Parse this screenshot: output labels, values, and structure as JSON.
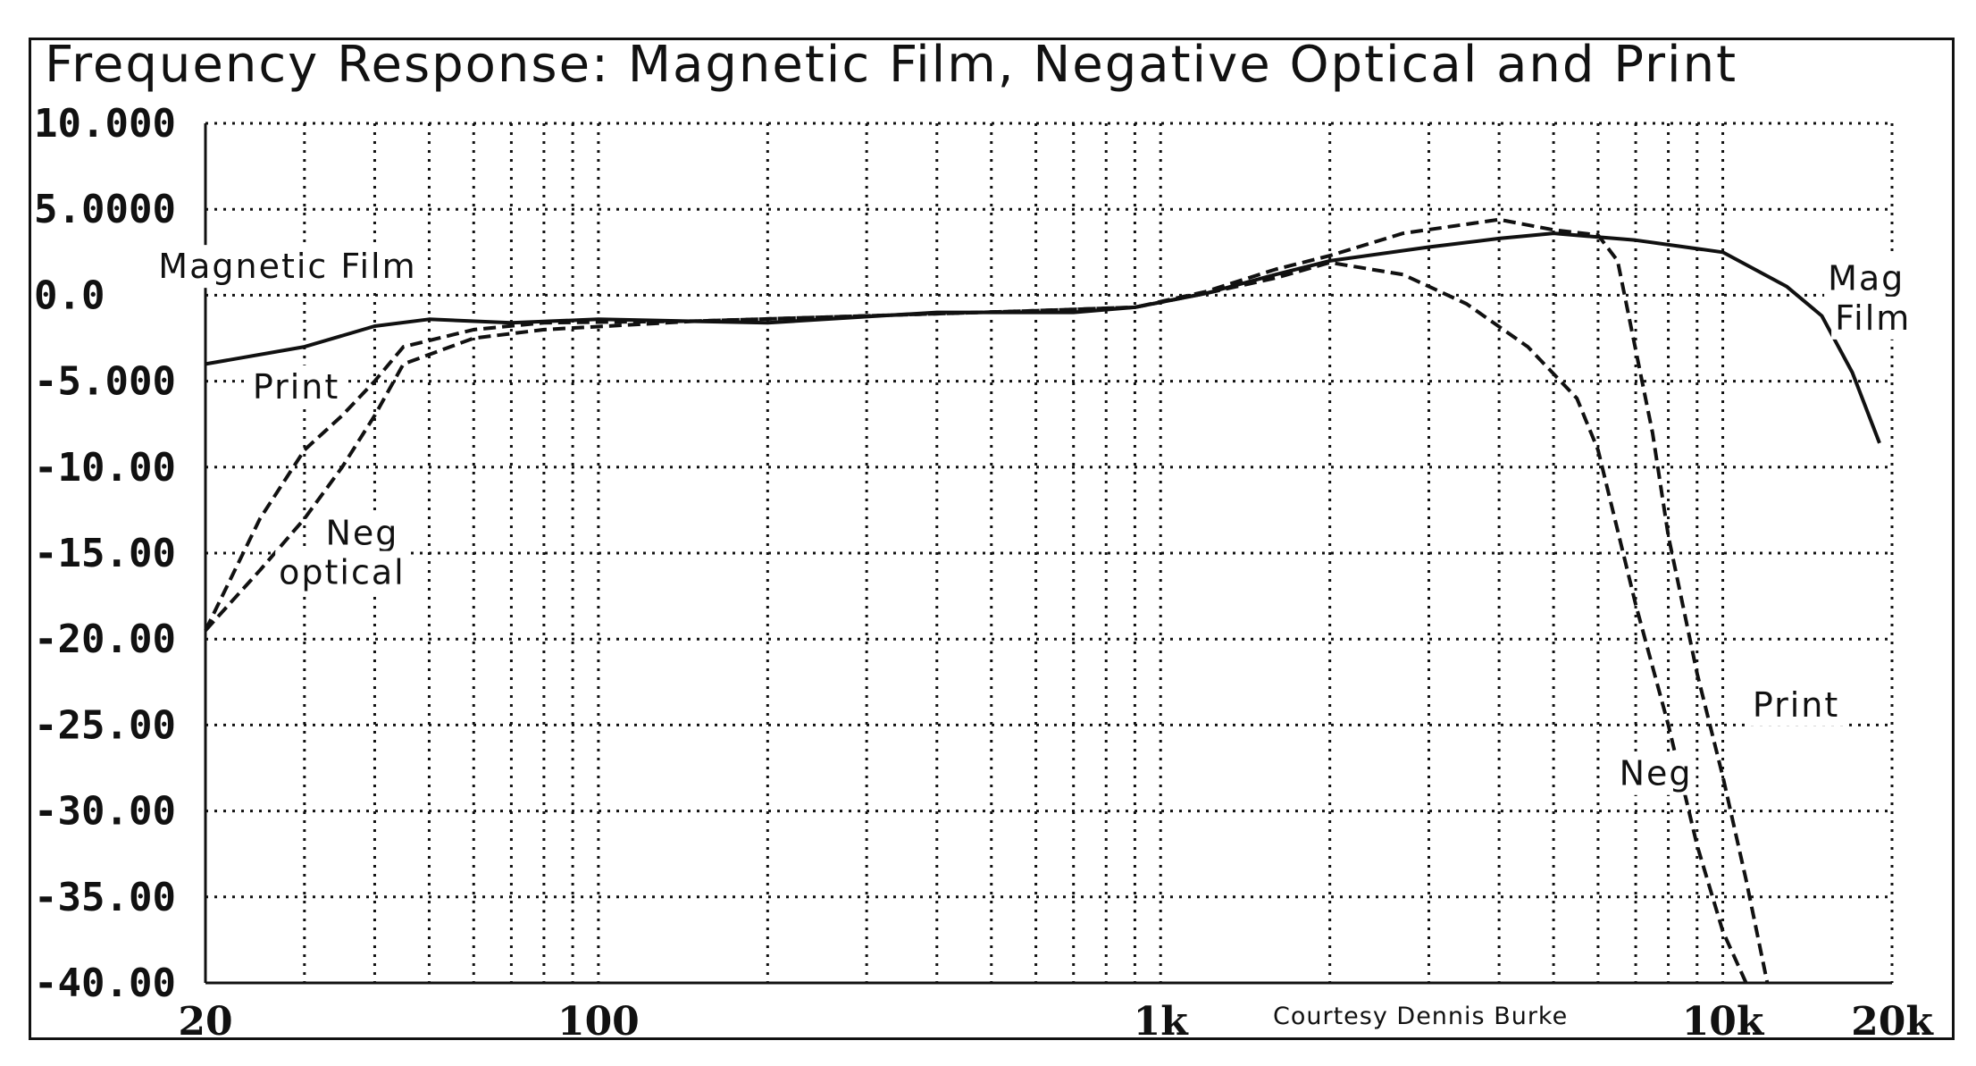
{
  "chart_data": {
    "type": "line",
    "title": "Frequency Response: Magnetic Film, Negative Optical and Print",
    "credit": "Courtesy Dennis Burke",
    "x_scale": "log",
    "xlim": [
      20,
      20000
    ],
    "ylim": [
      -40,
      10
    ],
    "grid": true,
    "y_ticks": [
      {
        "value": 10,
        "label": "10.000"
      },
      {
        "value": 5,
        "label": "5.0000"
      },
      {
        "value": 0,
        "label": "0.0"
      },
      {
        "value": -5,
        "label": "-5.000"
      },
      {
        "value": -10,
        "label": "-10.00"
      },
      {
        "value": -15,
        "label": "-15.00"
      },
      {
        "value": -20,
        "label": "-20.00"
      },
      {
        "value": -25,
        "label": "-25.00"
      },
      {
        "value": -30,
        "label": "-30.00"
      },
      {
        "value": -35,
        "label": "-35.00"
      },
      {
        "value": -40,
        "label": "-40.00"
      }
    ],
    "x_ticks": [
      {
        "value": 20,
        "label": "20"
      },
      {
        "value": 100,
        "label": "100"
      },
      {
        "value": 1000,
        "label": "1k"
      },
      {
        "value": 10000,
        "label": "10k"
      },
      {
        "value": 20000,
        "label": "20k"
      }
    ],
    "series": [
      {
        "name": "Magnetic Film",
        "style": "solid",
        "points": [
          [
            20,
            -4
          ],
          [
            30,
            -3
          ],
          [
            40,
            -1.8
          ],
          [
            50,
            -1.4
          ],
          [
            70,
            -1.6
          ],
          [
            100,
            -1.4
          ],
          [
            200,
            -1.6
          ],
          [
            400,
            -1
          ],
          [
            700,
            -1
          ],
          [
            900,
            -0.7
          ],
          [
            1200,
            0.1
          ],
          [
            1600,
            1.2
          ],
          [
            2000,
            2
          ],
          [
            3000,
            2.8
          ],
          [
            4000,
            3.3
          ],
          [
            5000,
            3.6
          ],
          [
            7000,
            3.2
          ],
          [
            10000,
            2.5
          ],
          [
            13000,
            0.5
          ],
          [
            15000,
            -1.2
          ],
          [
            17000,
            -4.5
          ],
          [
            19000,
            -8.6
          ]
        ]
      },
      {
        "name": "Print",
        "style": "dashed",
        "points": [
          [
            20,
            -19.5
          ],
          [
            25,
            -13
          ],
          [
            30,
            -9
          ],
          [
            35,
            -7
          ],
          [
            40,
            -5
          ],
          [
            45,
            -3
          ],
          [
            60,
            -2
          ],
          [
            80,
            -1.6
          ],
          [
            150,
            -1.5
          ],
          [
            300,
            -1.2
          ],
          [
            600,
            -0.9
          ],
          [
            900,
            -0.7
          ],
          [
            1200,
            0.2
          ],
          [
            1600,
            1.5
          ],
          [
            2000,
            2.3
          ],
          [
            2700,
            3.6
          ],
          [
            4000,
            4.4
          ],
          [
            5000,
            3.8
          ],
          [
            6000,
            3.5
          ],
          [
            6500,
            2
          ],
          [
            7500,
            -8
          ],
          [
            8000,
            -14
          ],
          [
            9000,
            -22
          ],
          [
            10000,
            -28
          ],
          [
            11000,
            -34
          ],
          [
            12000,
            -40
          ]
        ]
      },
      {
        "name": "Neg optical",
        "style": "dashed",
        "points": [
          [
            20,
            -19.5
          ],
          [
            25,
            -16
          ],
          [
            30,
            -13
          ],
          [
            35,
            -10
          ],
          [
            40,
            -7
          ],
          [
            45,
            -4
          ],
          [
            60,
            -2.5
          ],
          [
            80,
            -2
          ],
          [
            150,
            -1.5
          ],
          [
            300,
            -1.2
          ],
          [
            600,
            -0.9
          ],
          [
            900,
            -0.7
          ],
          [
            1200,
            0.1
          ],
          [
            1600,
            1
          ],
          [
            2000,
            1.9
          ],
          [
            2700,
            1.2
          ],
          [
            3500,
            -0.5
          ],
          [
            4500,
            -3
          ],
          [
            5500,
            -6
          ],
          [
            6000,
            -9
          ],
          [
            7000,
            -18
          ],
          [
            8000,
            -25
          ],
          [
            9000,
            -32
          ],
          [
            10000,
            -37
          ],
          [
            11000,
            -40
          ]
        ]
      }
    ],
    "annotations": [
      {
        "text": "Magnetic Film",
        "x": 28,
        "y": 1
      },
      {
        "text": "Print",
        "x": 29,
        "y": -6
      },
      {
        "text": "Neg",
        "x": 38,
        "y": -14.5
      },
      {
        "text": "optical",
        "x": 35,
        "y": -16.8
      },
      {
        "text": "Mag",
        "x": 18000,
        "y": 0.3
      },
      {
        "text": "Film",
        "x": 18500,
        "y": -2
      },
      {
        "text": "Print",
        "x": 13500,
        "y": -24.5
      },
      {
        "text": "Neg",
        "x": 7600,
        "y": -28.5
      }
    ]
  }
}
